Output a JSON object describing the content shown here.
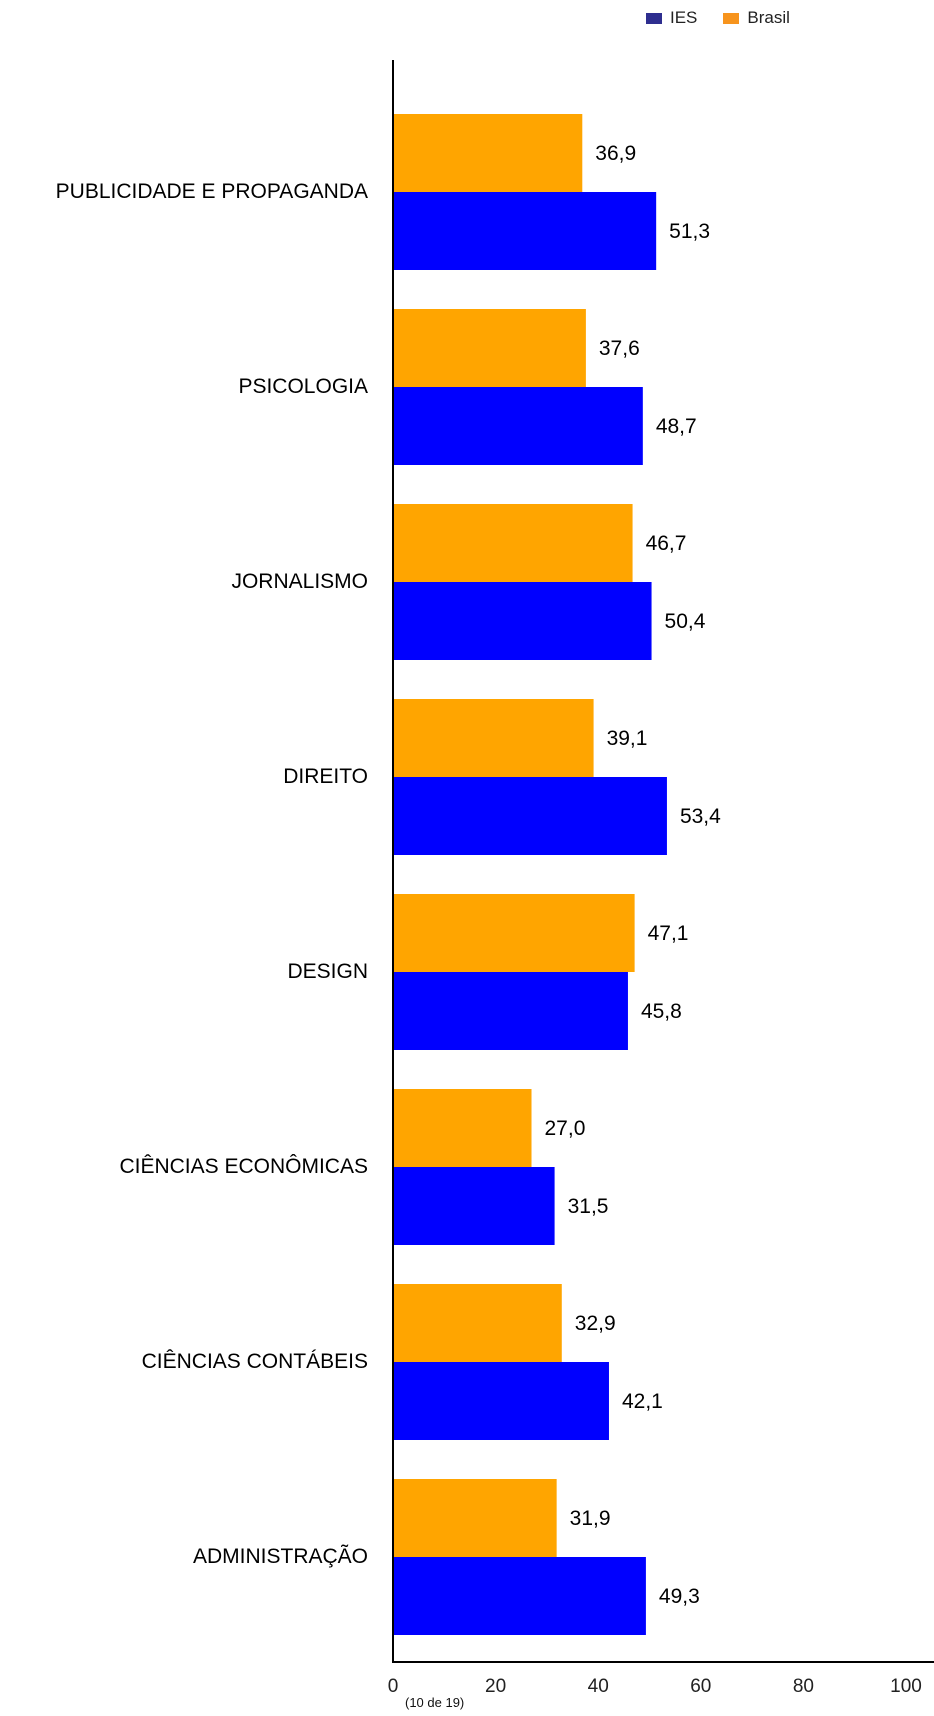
{
  "legend": {
    "ies_label": "IES",
    "brasil_label": "Brasil"
  },
  "colors": {
    "ies": "#0000ff",
    "brasil": "#ffa500",
    "ies_legend": "#2e2e8f",
    "brasil_legend": "#f7941d"
  },
  "chart_data": {
    "type": "bar",
    "orientation": "horizontal",
    "categories": [
      "PUBLICIDADE E PROPAGANDA",
      "PSICOLOGIA",
      "JORNALISMO",
      "DIREITO",
      "DESIGN",
      "CIÊNCIAS ECONÔMICAS",
      "CIÊNCIAS CONTÁBEIS",
      "ADMINISTRAÇÃO"
    ],
    "series": [
      {
        "name": "Brasil",
        "values": [
          36.9,
          37.6,
          46.7,
          39.1,
          47.1,
          27.0,
          32.9,
          31.9
        ],
        "labels": [
          "36,9",
          "37,6",
          "46,7",
          "39,1",
          "47,1",
          "27,0",
          "32,9",
          "31,9"
        ]
      },
      {
        "name": "IES",
        "values": [
          51.3,
          48.7,
          50.4,
          53.4,
          45.8,
          31.5,
          42.1,
          49.3
        ],
        "labels": [
          "51,3",
          "48,7",
          "50,4",
          "53,4",
          "45,8",
          "31,5",
          "42,1",
          "49,3"
        ]
      }
    ],
    "xlim": [
      0,
      100
    ],
    "xticks": [
      0,
      20,
      40,
      60,
      80,
      100
    ],
    "legend_position": "top-right",
    "grid": false
  },
  "footnote": "(10 de 19)"
}
